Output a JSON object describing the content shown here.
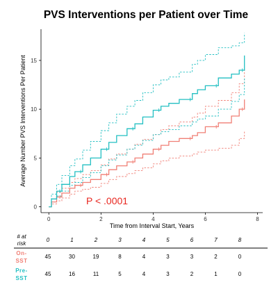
{
  "chart_data": {
    "type": "line",
    "title": "PVS Interventions per Patient over Time",
    "xlabel": "Time from Interval Start, Years",
    "ylabel": "Average Number PVS Interventions Per Patient",
    "xlim": [
      -0.3,
      8.2
    ],
    "ylim": [
      -0.6,
      18.2
    ],
    "x_ticks": [
      0,
      2,
      4,
      6,
      8
    ],
    "y_ticks": [
      0,
      5,
      10,
      15
    ],
    "grid": false,
    "annotation": "P < .0001",
    "series": [
      {
        "name": "On-SST",
        "color": "#f07f75",
        "x": [
          0,
          0.1,
          0.3,
          0.5,
          0.8,
          1.0,
          1.3,
          1.6,
          2.0,
          2.3,
          2.6,
          3.0,
          3.3,
          3.6,
          4.0,
          4.3,
          4.6,
          5.0,
          5.5,
          5.7,
          6.0,
          6.5,
          7.0,
          7.3,
          7.5
        ],
        "y": [
          0,
          0.5,
          1.0,
          1.4,
          1.9,
          2.2,
          2.5,
          2.8,
          3.3,
          3.8,
          4.2,
          4.6,
          5.0,
          5.4,
          5.9,
          6.3,
          6.7,
          7.0,
          7.3,
          7.6,
          8.2,
          8.6,
          9.3,
          10.0,
          11.0
        ],
        "ci_upper": [
          0,
          0.8,
          1.5,
          1.9,
          2.5,
          2.9,
          3.3,
          3.7,
          4.3,
          4.9,
          5.4,
          5.9,
          6.4,
          6.9,
          7.4,
          7.9,
          8.3,
          8.7,
          9.2,
          9.6,
          10.3,
          10.9,
          11.7,
          12.6,
          14.1
        ],
        "ci_lower": [
          0,
          0.3,
          0.6,
          0.9,
          1.3,
          1.6,
          1.8,
          2.0,
          2.4,
          2.8,
          3.1,
          3.4,
          3.7,
          4.0,
          4.4,
          4.7,
          5.0,
          5.2,
          5.4,
          5.6,
          5.8,
          6.0,
          6.3,
          7.0,
          7.8
        ],
        "risk": [
          45,
          30,
          19,
          8,
          4,
          3,
          3,
          2,
          0
        ]
      },
      {
        "name": "Pre-SST",
        "color": "#22bfc2",
        "x": [
          0,
          0.1,
          0.3,
          0.5,
          0.8,
          1.0,
          1.3,
          1.6,
          2.0,
          2.3,
          2.6,
          3.0,
          3.3,
          3.6,
          4.0,
          4.3,
          4.6,
          5.0,
          5.5,
          5.7,
          6.0,
          6.5,
          7.0,
          7.3,
          7.5
        ],
        "y": [
          0,
          0.8,
          1.6,
          2.3,
          3.1,
          3.6,
          4.3,
          5.0,
          5.9,
          6.6,
          7.3,
          8.0,
          8.5,
          9.2,
          9.9,
          10.3,
          10.6,
          11.0,
          11.6,
          12.0,
          12.4,
          13.2,
          13.6,
          14.0,
          15.5
        ],
        "ci_upper": [
          0,
          1.3,
          2.3,
          3.2,
          4.2,
          4.9,
          5.8,
          6.7,
          7.8,
          8.6,
          9.5,
          10.3,
          10.9,
          11.7,
          12.5,
          13.0,
          13.3,
          13.8,
          14.6,
          15.0,
          15.6,
          16.3,
          16.5,
          16.8,
          17.8
        ],
        "ci_lower": [
          0,
          0.5,
          1.1,
          1.6,
          2.2,
          2.5,
          3.0,
          3.5,
          4.2,
          4.8,
          5.3,
          5.9,
          6.3,
          6.8,
          7.4,
          7.7,
          7.9,
          8.3,
          8.7,
          9.0,
          9.3,
          10.0,
          10.8,
          11.5,
          13.2
        ],
        "risk": [
          45,
          16,
          11,
          5,
          4,
          3,
          2,
          1,
          0
        ]
      }
    ],
    "risk_table": {
      "header_label": "# at risk",
      "times": [
        "0",
        "1",
        "2",
        "3",
        "4",
        "5",
        "6",
        "7",
        "8"
      ]
    }
  }
}
